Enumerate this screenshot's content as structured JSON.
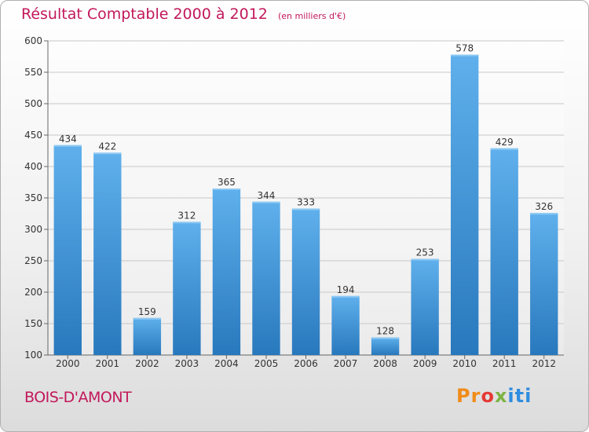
{
  "title": "Résultat Comptable 2000 à 2012",
  "unit_note": "(en milliers d'€)",
  "commune": "BOIS-D'AMONT",
  "logo": {
    "text": "Proxiti",
    "parts": [
      "Pr",
      "o",
      "x",
      "iti"
    ]
  },
  "colors": {
    "bar": "#3f97dc",
    "title": "#c2185b",
    "grid": "#c8c8c8"
  },
  "chart_data": {
    "type": "bar",
    "title": "Résultat Comptable 2000 à 2012",
    "subtitle": "(en milliers d'€)",
    "xlabel": "",
    "ylabel": "",
    "categories": [
      "2000",
      "2001",
      "2002",
      "2003",
      "2004",
      "2005",
      "2006",
      "2007",
      "2008",
      "2009",
      "2010",
      "2011",
      "2012"
    ],
    "values": [
      434,
      422,
      159,
      312,
      365,
      344,
      333,
      194,
      128,
      253,
      578,
      429,
      326
    ],
    "ylim": [
      100,
      600
    ],
    "yticks": [
      100,
      150,
      200,
      250,
      300,
      350,
      400,
      450,
      500,
      550,
      600
    ],
    "grid": true,
    "legend": "none"
  }
}
